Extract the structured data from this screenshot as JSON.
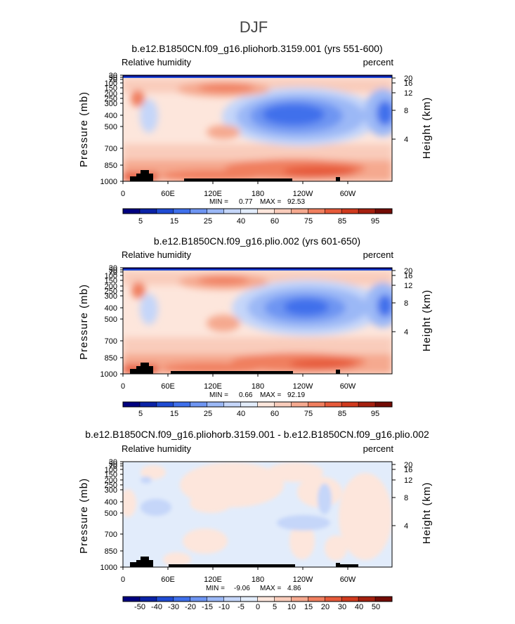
{
  "figure_title": "DJF",
  "chart_data": [
    {
      "type": "heatmap",
      "title": "b.e12.B1850CN.f09_g16.pliohorb.3159.001 (yrs 551-600)",
      "left_label": "Relative humidity",
      "right_label": "percent",
      "xlabel": "",
      "ylabel": "Pressure (mb)",
      "y2label": "Height (km)",
      "x_tick_labels": [
        "0",
        "60E",
        "120E",
        "180",
        "120W",
        "60W"
      ],
      "y_tick_labels": [
        "30",
        "50",
        "70",
        "100",
        "150",
        "200",
        "250",
        "300",
        "400",
        "500",
        "700",
        "850",
        "1000"
      ],
      "y2_tick_labels": [
        "20",
        "16",
        "12",
        "8",
        "4"
      ],
      "min_label": "MIN =",
      "min_value": "0.77",
      "max_label": "MAX =",
      "max_value": "92.53",
      "colorbar_labels": [
        "5",
        "15",
        "25",
        "40",
        "60",
        "75",
        "85",
        "95"
      ],
      "colorbar_colors": [
        "#00007f",
        "#0a22a6",
        "#1f4bd3",
        "#3f70eb",
        "#6e95f2",
        "#9bb8f6",
        "#c5d6f9",
        "#e2ecfb",
        "#fde6dc",
        "#f9ccbb",
        "#f5a98f",
        "#f07f5f",
        "#e65a3a",
        "#d03a1e",
        "#a5200f",
        "#730b05"
      ],
      "x_range": [
        0,
        360
      ],
      "y_range_mb": [
        1000,
        30
      ]
    },
    {
      "type": "heatmap",
      "title": "b.e12.B1850CN.f09_g16.plio.002 (yrs 601-650)",
      "left_label": "Relative humidity",
      "right_label": "percent",
      "xlabel": "",
      "ylabel": "Pressure (mb)",
      "y2label": "Height (km)",
      "x_tick_labels": [
        "0",
        "60E",
        "120E",
        "180",
        "120W",
        "60W"
      ],
      "y_tick_labels": [
        "30",
        "50",
        "70",
        "100",
        "150",
        "200",
        "250",
        "300",
        "400",
        "500",
        "700",
        "850",
        "1000"
      ],
      "y2_tick_labels": [
        "20",
        "16",
        "12",
        "8",
        "4"
      ],
      "min_label": "MIN =",
      "min_value": "0.66",
      "max_label": "MAX =",
      "max_value": "92.19",
      "colorbar_labels": [
        "5",
        "15",
        "25",
        "40",
        "60",
        "75",
        "85",
        "95"
      ],
      "colorbar_colors": [
        "#00007f",
        "#0a22a6",
        "#1f4bd3",
        "#3f70eb",
        "#6e95f2",
        "#9bb8f6",
        "#c5d6f9",
        "#e2ecfb",
        "#fde6dc",
        "#f9ccbb",
        "#f5a98f",
        "#f07f5f",
        "#e65a3a",
        "#d03a1e",
        "#a5200f",
        "#730b05"
      ],
      "x_range": [
        0,
        360
      ],
      "y_range_mb": [
        1000,
        30
      ]
    },
    {
      "type": "heatmap",
      "title": "b.e12.B1850CN.f09_g16.pliohorb.3159.001 - b.e12.B1850CN.f09_g16.plio.002",
      "left_label": "Relative humidity",
      "right_label": "percent",
      "xlabel": "",
      "ylabel": "Pressure (mb)",
      "y2label": "Height (km)",
      "x_tick_labels": [
        "0",
        "60E",
        "120E",
        "180",
        "120W",
        "60W"
      ],
      "y_tick_labels": [
        "30",
        "50",
        "70",
        "100",
        "150",
        "200",
        "250",
        "300",
        "400",
        "500",
        "700",
        "850",
        "1000"
      ],
      "y2_tick_labels": [
        "20",
        "16",
        "12",
        "8",
        "4"
      ],
      "min_label": "MIN =",
      "min_value": "-9.06",
      "max_label": "MAX =",
      "max_value": "4.86",
      "colorbar_labels": [
        "-50",
        "-40",
        "-30",
        "-20",
        "-15",
        "-10",
        "-5",
        "0",
        "5",
        "10",
        "15",
        "20",
        "30",
        "40",
        "50"
      ],
      "colorbar_colors": [
        "#00007f",
        "#0a22a6",
        "#1f4bd3",
        "#3f70eb",
        "#6e95f2",
        "#9bb8f6",
        "#c5d6f9",
        "#e2ecfb",
        "#fde6dc",
        "#f9ccbb",
        "#f5a98f",
        "#f07f5f",
        "#e65a3a",
        "#d03a1e",
        "#a5200f",
        "#730b05"
      ],
      "x_range": [
        0,
        360
      ],
      "y_range_mb": [
        1000,
        30
      ]
    }
  ]
}
